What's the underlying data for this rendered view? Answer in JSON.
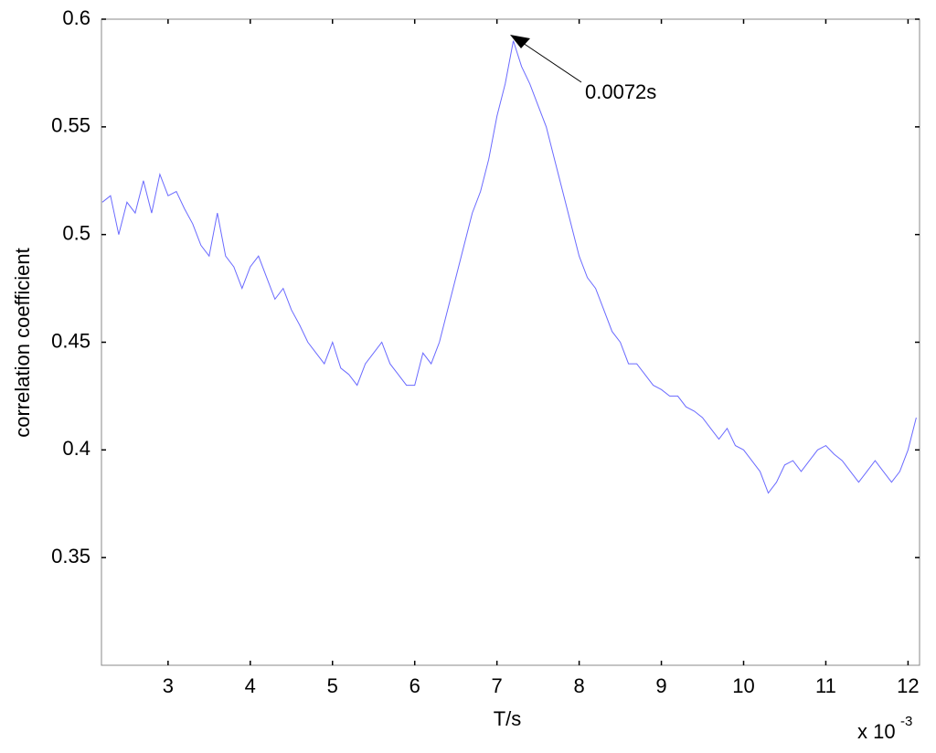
{
  "chart_data": {
    "type": "line",
    "xlabel": "T/s",
    "ylabel": "correlation coefficient",
    "x_multiplier": "x 10",
    "x_exponent": "-3",
    "annotation": "0.0072s",
    "color": "#6a6aff",
    "grid": false,
    "xlim": [
      2.19,
      12.14
    ],
    "ylim": [
      0.3,
      0.6
    ],
    "xticks": [
      3,
      4,
      5,
      6,
      7,
      8,
      9,
      10,
      11,
      12
    ],
    "yticks": [
      0.35,
      0.4,
      0.45,
      0.5,
      0.55,
      0.6
    ],
    "x": [
      2.2,
      2.3,
      2.4,
      2.5,
      2.6,
      2.7,
      2.8,
      2.9,
      3.0,
      3.1,
      3.2,
      3.3,
      3.4,
      3.5,
      3.6,
      3.7,
      3.8,
      3.9,
      4.0,
      4.1,
      4.2,
      4.3,
      4.4,
      4.5,
      4.6,
      4.7,
      4.8,
      4.9,
      5.0,
      5.1,
      5.2,
      5.3,
      5.4,
      5.5,
      5.6,
      5.7,
      5.8,
      5.9,
      6.0,
      6.1,
      6.2,
      6.3,
      6.4,
      6.5,
      6.6,
      6.7,
      6.8,
      6.9,
      7.0,
      7.1,
      7.2,
      7.3,
      7.4,
      7.5,
      7.6,
      7.7,
      7.8,
      7.9,
      8.0,
      8.1,
      8.2,
      8.3,
      8.4,
      8.5,
      8.6,
      8.7,
      8.8,
      8.9,
      9.0,
      9.1,
      9.2,
      9.3,
      9.4,
      9.5,
      9.6,
      9.7,
      9.8,
      9.9,
      10.0,
      10.1,
      10.2,
      10.3,
      10.4,
      10.5,
      10.6,
      10.7,
      10.8,
      10.9,
      11.0,
      11.1,
      11.2,
      11.3,
      11.4,
      11.5,
      11.6,
      11.7,
      11.8,
      11.9,
      12.0,
      12.1
    ],
    "values": [
      0.515,
      0.518,
      0.5,
      0.515,
      0.51,
      0.525,
      0.51,
      0.528,
      0.518,
      0.52,
      0.512,
      0.505,
      0.495,
      0.49,
      0.51,
      0.49,
      0.485,
      0.475,
      0.485,
      0.49,
      0.48,
      0.47,
      0.475,
      0.465,
      0.458,
      0.45,
      0.445,
      0.44,
      0.45,
      0.438,
      0.435,
      0.43,
      0.44,
      0.445,
      0.45,
      0.44,
      0.435,
      0.43,
      0.43,
      0.445,
      0.44,
      0.45,
      0.465,
      0.48,
      0.495,
      0.51,
      0.52,
      0.535,
      0.555,
      0.57,
      0.59,
      0.578,
      0.57,
      0.56,
      0.55,
      0.535,
      0.52,
      0.505,
      0.49,
      0.48,
      0.475,
      0.465,
      0.455,
      0.45,
      0.44,
      0.44,
      0.435,
      0.43,
      0.428,
      0.425,
      0.425,
      0.42,
      0.418,
      0.415,
      0.41,
      0.405,
      0.41,
      0.402,
      0.4,
      0.395,
      0.39,
      0.38,
      0.385,
      0.393,
      0.395,
      0.39,
      0.395,
      0.4,
      0.402,
      0.398,
      0.395,
      0.39,
      0.385,
      0.39,
      0.395,
      0.39,
      0.385,
      0.39,
      0.4,
      0.415
    ]
  }
}
